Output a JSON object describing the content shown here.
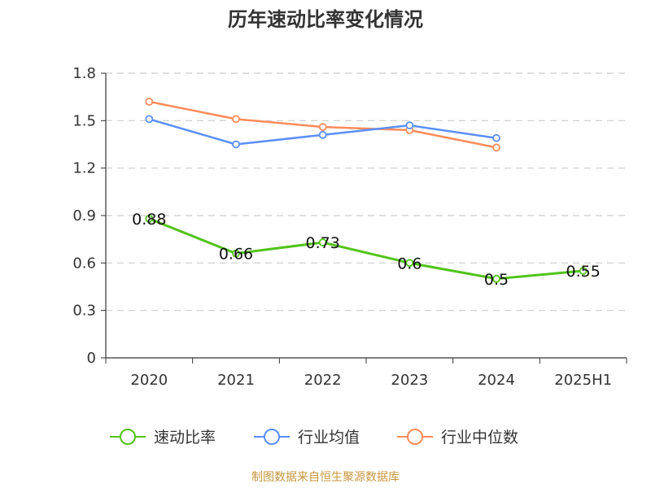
{
  "source_text": "制图数据来自恒生聚源数据库",
  "chart_data": {
    "type": "line",
    "title": "历年速动比率变化情况",
    "xlabel": "",
    "ylabel": "",
    "categories": [
      "2020",
      "2021",
      "2022",
      "2023",
      "2024",
      "2025H1"
    ],
    "ylim": [
      0,
      1.8
    ],
    "yticks": [
      "0",
      "0.3",
      "0.6",
      "0.9",
      "1.2",
      "1.5",
      "1.8"
    ],
    "grid": true,
    "legend_position": "bottom",
    "series": [
      {
        "name": "速动比率",
        "color": "#52c41a",
        "values": [
          0.88,
          0.66,
          0.73,
          0.6,
          0.5,
          0.55
        ],
        "labels": [
          "0.88",
          "0.66",
          "0.73",
          "0.6",
          "0.5",
          "0.55"
        ]
      },
      {
        "name": "行业均值",
        "color": "#5b8ff9",
        "values": [
          1.51,
          1.35,
          1.41,
          1.47,
          1.39,
          null
        ]
      },
      {
        "name": "行业中位数",
        "color": "#ff8c5a",
        "values": [
          1.62,
          1.51,
          1.46,
          1.44,
          1.33,
          null
        ]
      }
    ]
  }
}
